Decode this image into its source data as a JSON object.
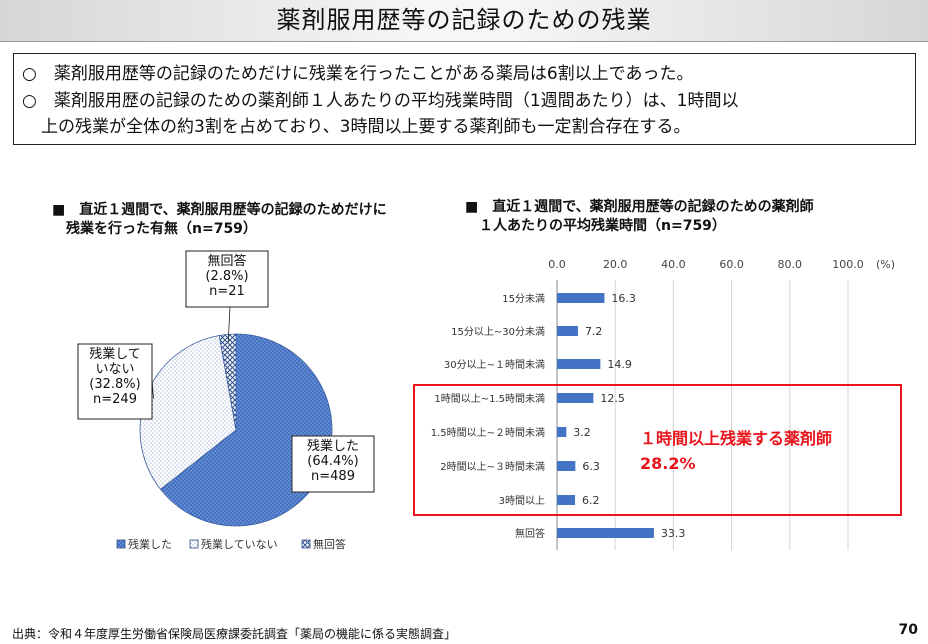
{
  "page": {
    "title": "薬剤服用歴等の記録のための残業",
    "summary": [
      "○　薬剤服用歴等の記録のためだけに残業を行ったことがある薬局は6割以上であった。",
      "○　薬剤服用歴の記録のための薬剤師１人あたりの平均残業時間（1週間あたり）は、1時間以",
      "上の残業が全体の約3割を占めており、3時間以上要する薬剤師も一定割合存在する。"
    ],
    "footer": "出典：令和４年度厚生労働省保険局医療課委託調査「薬局の機能に係る実態調査」",
    "page_number": "70"
  },
  "colors": {
    "bar": "#4472c4",
    "pie_main": "#4472c4",
    "highlight": "#e8141b"
  },
  "chart_data": [
    {
      "type": "pie",
      "title_lines": [
        "■　直近１週間で、薬剤服用歴等の記録のためだけに",
        "　残業を行った有無（n=759）"
      ],
      "slices": [
        {
          "name": "残業した",
          "value": 64.4,
          "n": 489,
          "label_lines": [
            "残業した",
            "(64.4%)",
            "n=489"
          ]
        },
        {
          "name": "残業していない",
          "value": 32.8,
          "n": 249,
          "label_lines": [
            "残業して",
            "いない",
            "(32.8%)",
            "n=249"
          ]
        },
        {
          "name": "無回答",
          "value": 2.8,
          "n": 21,
          "label_lines": [
            "無回答",
            "(2.8%)",
            "n=21"
          ]
        }
      ],
      "legend": [
        "残業した",
        "残業していない",
        "無回答"
      ],
      "legend_position": "bottom"
    },
    {
      "type": "bar",
      "orientation": "horizontal",
      "title_lines": [
        "■　直近１週間で、薬剤服用歴等の記録のための薬剤師",
        "　１人あたりの平均残業時間（n=759）"
      ],
      "categories": [
        "15分未満",
        "15分以上~30分未満",
        "30分以上~１時間未満",
        "1時間以上~1.5時間未満",
        "1.5時間以上~２時間未満",
        "2時間以上~３時間未満",
        "3時間以上",
        "無回答"
      ],
      "values": [
        16.3,
        7.2,
        14.9,
        12.5,
        3.2,
        6.3,
        6.2,
        33.3
      ],
      "value_labels": [
        "16.3",
        "7.2",
        "14.9",
        "12.5",
        "3.2",
        "6.3",
        "6.2",
        "33.3"
      ],
      "xlim": [
        0,
        100
      ],
      "xticks": [
        "0.0",
        "20.0",
        "40.0",
        "60.0",
        "80.0",
        "100.0"
      ],
      "unit": "(%)",
      "grid": true,
      "annotation": {
        "lines": [
          "１時間以上残業する薬剤師",
          "28.2%"
        ],
        "category_range": [
          3,
          6
        ]
      }
    }
  ]
}
